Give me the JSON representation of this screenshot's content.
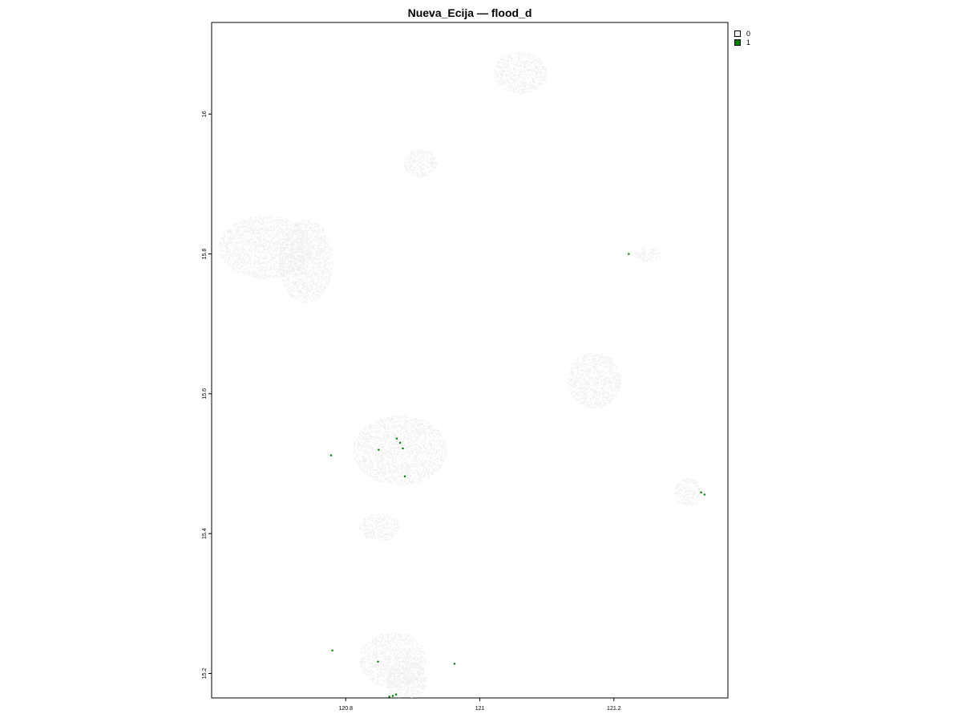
{
  "title": "Nueva_Ecija — flood_d",
  "legend": [
    {
      "label": "0",
      "color": "#f0f0f0"
    },
    {
      "label": "1",
      "color": "#008000"
    }
  ],
  "chart_data": {
    "type": "heatmap",
    "title": "Nueva_Ecija — flood_d",
    "xlabel": "",
    "ylabel": "",
    "xlim": [
      120.6,
      121.37
    ],
    "ylim": [
      15.165,
      16.131
    ],
    "x_ticks": [
      120.8,
      121.0,
      121.2
    ],
    "x_tick_labels": [
      "120.8",
      "121",
      "121.2"
    ],
    "y_ticks": [
      15.2,
      15.4,
      15.6,
      15.8,
      16.0
    ],
    "y_tick_labels": [
      "15.2",
      "15.4",
      "15.6",
      "15.8",
      "16"
    ],
    "classes": [
      {
        "value": 0,
        "color": "#f0f0f0"
      },
      {
        "value": 1,
        "color": "#008000"
      }
    ],
    "class0_clusters": [
      {
        "x": 120.68,
        "y": 15.81,
        "rx": 0.07,
        "ry": 0.045
      },
      {
        "x": 120.74,
        "y": 15.79,
        "rx": 0.04,
        "ry": 0.06
      },
      {
        "x": 120.91,
        "y": 15.93,
        "rx": 0.025,
        "ry": 0.02
      },
      {
        "x": 121.17,
        "y": 15.62,
        "rx": 0.04,
        "ry": 0.04
      },
      {
        "x": 120.88,
        "y": 15.52,
        "rx": 0.07,
        "ry": 0.05
      },
      {
        "x": 120.85,
        "y": 15.41,
        "rx": 0.03,
        "ry": 0.02
      },
      {
        "x": 120.87,
        "y": 15.22,
        "rx": 0.05,
        "ry": 0.04
      },
      {
        "x": 120.89,
        "y": 15.19,
        "rx": 0.03,
        "ry": 0.03
      },
      {
        "x": 121.31,
        "y": 15.46,
        "rx": 0.02,
        "ry": 0.02
      },
      {
        "x": 121.06,
        "y": 16.06,
        "rx": 0.04,
        "ry": 0.03
      },
      {
        "x": 121.25,
        "y": 15.8,
        "rx": 0.02,
        "ry": 0.01
      }
    ],
    "class1_points": [
      {
        "x": 120.78,
        "y": 15.233
      },
      {
        "x": 120.848,
        "y": 15.217
      },
      {
        "x": 120.87,
        "y": 15.168
      },
      {
        "x": 120.875,
        "y": 15.17
      },
      {
        "x": 120.865,
        "y": 15.167
      },
      {
        "x": 120.962,
        "y": 15.214
      },
      {
        "x": 120.778,
        "y": 15.512
      },
      {
        "x": 120.849,
        "y": 15.52
      },
      {
        "x": 120.876,
        "y": 15.536
      },
      {
        "x": 120.881,
        "y": 15.53
      },
      {
        "x": 120.885,
        "y": 15.522
      },
      {
        "x": 120.888,
        "y": 15.482
      },
      {
        "x": 121.222,
        "y": 15.8
      },
      {
        "x": 121.33,
        "y": 15.459
      },
      {
        "x": 121.335,
        "y": 15.456
      }
    ]
  }
}
